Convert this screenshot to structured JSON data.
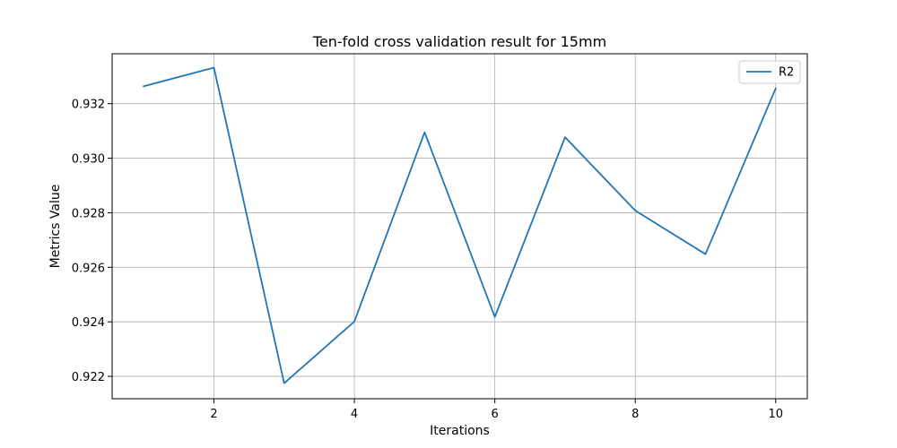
{
  "chart_data": {
    "type": "line",
    "title": "Ten-fold cross validation result for 15mm",
    "xlabel": "Iterations",
    "ylabel": "Metrics Value",
    "x": [
      1,
      2,
      3,
      4,
      5,
      6,
      7,
      8,
      9,
      10
    ],
    "series": [
      {
        "name": "R2",
        "color": "#1f77b4",
        "values": [
          0.93264,
          0.93332,
          0.92175,
          0.92401,
          0.93095,
          0.92418,
          0.93077,
          0.92808,
          0.92648,
          0.93256
        ]
      }
    ],
    "xlim": [
      0.55,
      10.45
    ],
    "ylim": [
      0.92118,
      0.93383
    ],
    "xticks": [
      2,
      4,
      6,
      8,
      10
    ],
    "xtick_labels": [
      "2",
      "4",
      "6",
      "8",
      "10"
    ],
    "yticks": [
      0.922,
      0.924,
      0.926,
      0.928,
      0.93,
      0.932
    ],
    "ytick_labels": [
      "0.922",
      "0.924",
      "0.926",
      "0.928",
      "0.930",
      "0.932"
    ],
    "grid": true,
    "legend_position": "top-right"
  }
}
